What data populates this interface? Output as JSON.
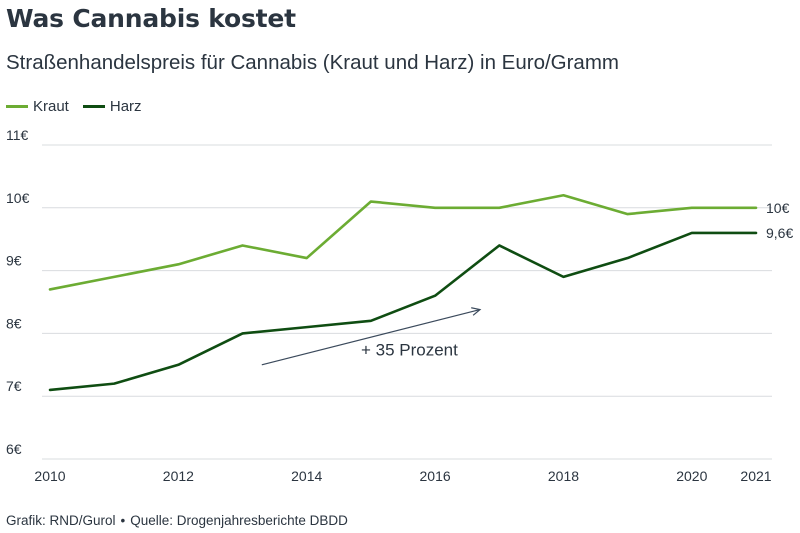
{
  "chart_data": {
    "type": "line",
    "title": "Was Cannabis kostet",
    "subtitle": "Straßenhandelspreis für Cannabis (Kraut und Harz) in Euro/Gramm",
    "x": [
      2010,
      2011,
      2012,
      2013,
      2014,
      2015,
      2016,
      2017,
      2018,
      2019,
      2020,
      2021
    ],
    "x_tick_labels": [
      {
        "x": 2010,
        "label": "2010"
      },
      {
        "x": 2012,
        "label": "2012"
      },
      {
        "x": 2014,
        "label": "2014"
      },
      {
        "x": 2016,
        "label": "2016"
      },
      {
        "x": 2018,
        "label": "2018"
      },
      {
        "x": 2020,
        "label": "2020"
      },
      {
        "x": 2021,
        "label": "2021"
      }
    ],
    "y_ticks": [
      {
        "value": 6,
        "label": "6€"
      },
      {
        "value": 7,
        "label": "7€"
      },
      {
        "value": 8,
        "label": "8€"
      },
      {
        "value": 9,
        "label": "9€"
      },
      {
        "value": 10,
        "label": "10€"
      },
      {
        "value": 11,
        "label": "11€"
      }
    ],
    "ylim": [
      6,
      11
    ],
    "xlim": [
      2010,
      2021
    ],
    "grid": true,
    "legend_position": "top-left",
    "series": [
      {
        "name": "Kraut",
        "color": "#6cac33",
        "values": [
          8.7,
          8.9,
          9.1,
          9.4,
          9.2,
          10.1,
          10.0,
          10.0,
          10.2,
          9.9,
          10.0,
          10.0
        ],
        "end_label": "10€"
      },
      {
        "name": "Harz",
        "color": "#0f4d12",
        "values": [
          7.1,
          7.2,
          7.5,
          8.0,
          8.1,
          8.2,
          8.6,
          9.4,
          8.9,
          9.2,
          9.6,
          9.6
        ],
        "end_label": "9,6€"
      }
    ],
    "annotation": {
      "text": "+ 35 Prozent",
      "arrow_from": {
        "x": 2013.3,
        "y": 7.5
      },
      "arrow_to": {
        "x": 2016.7,
        "y": 8.38
      },
      "text_anchor": {
        "x": 2015.6,
        "y": 7.65
      }
    }
  },
  "footer": {
    "credit": "Grafik: RND/Gurol",
    "separator": "•",
    "source": "Quelle: Drogenjahresberichte DBDD"
  },
  "colors": {
    "text": "#2b3540",
    "grid": "#d9dcdf",
    "annotation_arrow": "#3b4a5c"
  }
}
